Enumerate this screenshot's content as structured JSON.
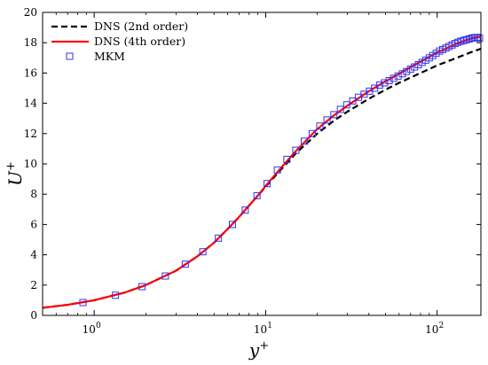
{
  "chart_data": {
    "type": "line",
    "title": "",
    "xlabel": "y",
    "xlabel_sup": "+",
    "ylabel": "U",
    "ylabel_sup": "+",
    "xscale": "log",
    "xlim": [
      0.5,
      180
    ],
    "ylim": [
      0,
      20
    ],
    "grid": false,
    "legend_position": "top-left",
    "x_ticks": [
      {
        "value": 1,
        "base": "10",
        "exp": "0"
      },
      {
        "value": 10,
        "base": "10",
        "exp": "1"
      },
      {
        "value": 100,
        "base": "10",
        "exp": "2"
      }
    ],
    "y_ticks": [
      0,
      2,
      4,
      6,
      8,
      10,
      12,
      14,
      16,
      18,
      20
    ],
    "series": [
      {
        "name": "DNS (2nd order)",
        "style": "dashed",
        "color": "#000000",
        "x": [
          0.5,
          0.7,
          1,
          1.5,
          2,
          3,
          4,
          5,
          6,
          7,
          8,
          9,
          10,
          12,
          15,
          20,
          25,
          30,
          40,
          50,
          60,
          80,
          100,
          130,
          160,
          180
        ],
        "y": [
          0.5,
          0.7,
          1.0,
          1.5,
          2.0,
          2.95,
          3.9,
          4.8,
          5.7,
          6.5,
          7.25,
          7.9,
          8.5,
          9.5,
          10.7,
          12.0,
          12.85,
          13.45,
          14.3,
          14.9,
          15.35,
          16.0,
          16.5,
          17.0,
          17.4,
          17.6
        ]
      },
      {
        "name": "DNS (4th order)",
        "style": "solid",
        "color": "#ff0000",
        "x": [
          0.5,
          0.7,
          1,
          1.5,
          2,
          3,
          4,
          5,
          6,
          7,
          8,
          9,
          10,
          12,
          15,
          20,
          25,
          30,
          40,
          50,
          60,
          80,
          100,
          130,
          160,
          180
        ],
        "y": [
          0.5,
          0.7,
          1.0,
          1.5,
          2.0,
          2.95,
          3.9,
          4.8,
          5.7,
          6.5,
          7.25,
          7.9,
          8.55,
          9.6,
          10.85,
          12.3,
          13.2,
          13.85,
          14.8,
          15.45,
          15.95,
          16.75,
          17.35,
          17.95,
          18.3,
          18.4
        ]
      },
      {
        "name": "MKM",
        "style": "markers",
        "marker": "square",
        "color": "#3333ee",
        "x": [
          0.86,
          1.33,
          1.9,
          2.6,
          3.4,
          4.3,
          5.3,
          6.4,
          7.6,
          8.9,
          10.2,
          11.7,
          13.3,
          15.0,
          16.8,
          18.7,
          20.7,
          22.8,
          25.0,
          27.3,
          29.7,
          32.2,
          34.8,
          37.5,
          40.3,
          43.2,
          46.2,
          49.3,
          52.5,
          55.8,
          59.2,
          62.7,
          66.3,
          70.0,
          73.8,
          77.7,
          81.7,
          85.8,
          90.0,
          94.3,
          98.7,
          103.2,
          107.8,
          112.5,
          117.3,
          122.2,
          127.2,
          132.3,
          137.5,
          142.8,
          148.2,
          153.7,
          159.3,
          165.0,
          170.8,
          176.7
        ],
        "y": [
          0.85,
          1.33,
          1.9,
          2.6,
          3.38,
          4.2,
          5.1,
          6.0,
          6.95,
          7.9,
          8.7,
          9.6,
          10.3,
          10.9,
          11.5,
          12.0,
          12.5,
          12.9,
          13.25,
          13.6,
          13.9,
          14.15,
          14.4,
          14.6,
          14.8,
          15.0,
          15.2,
          15.35,
          15.5,
          15.65,
          15.8,
          15.95,
          16.1,
          16.25,
          16.4,
          16.55,
          16.7,
          16.85,
          17.0,
          17.15,
          17.3,
          17.45,
          17.55,
          17.65,
          17.75,
          17.85,
          17.95,
          18.03,
          18.1,
          18.15,
          18.2,
          18.25,
          18.3,
          18.33,
          18.35,
          18.3
        ]
      }
    ]
  }
}
